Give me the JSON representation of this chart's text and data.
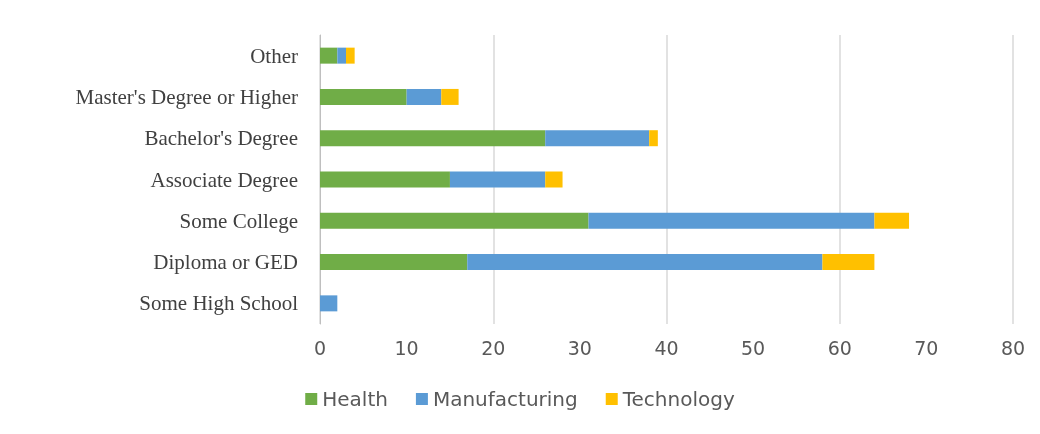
{
  "chart_data": {
    "type": "bar",
    "orientation": "horizontal",
    "stacked": true,
    "categories": [
      "Other",
      "Master's Degree or Higher",
      "Bachelor's Degree",
      "Associate Degree",
      "Some College",
      "Diploma or GED",
      "Some High School"
    ],
    "series": [
      {
        "name": "Health",
        "color": "#70ad47",
        "values": [
          2,
          10,
          26,
          15,
          31,
          17,
          0
        ]
      },
      {
        "name": "Manufacturing",
        "color": "#5b9bd5",
        "values": [
          1,
          4,
          12,
          11,
          33,
          41,
          2
        ]
      },
      {
        "name": "Technology",
        "color": "#ffc000",
        "values": [
          1,
          2,
          1,
          2,
          4,
          6,
          0
        ]
      }
    ],
    "xlim": [
      0,
      80
    ],
    "xticks": [
      0,
      10,
      20,
      30,
      40,
      50,
      60,
      70,
      80
    ],
    "grid": "x",
    "legend": "bottom"
  }
}
